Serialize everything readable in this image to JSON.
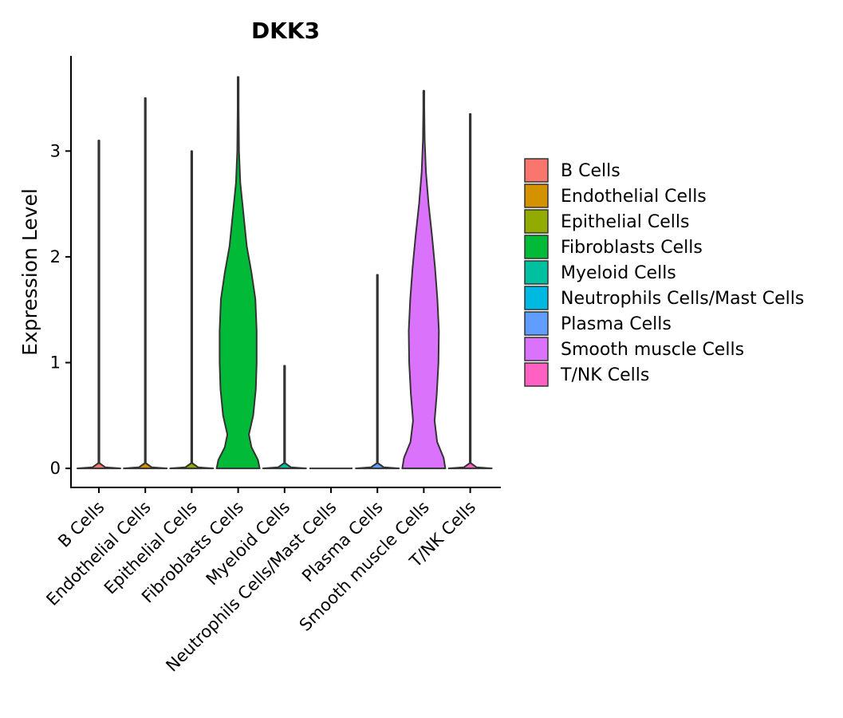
{
  "chart_data": {
    "type": "violin",
    "title": "DKK3",
    "xlabel": "",
    "ylabel": "Expression Level",
    "ylim": [
      -0.18,
      3.9
    ],
    "yticks": [
      "0",
      "1",
      "2",
      "3"
    ],
    "categories": [
      "B Cells",
      "Endothelial Cells",
      "Epithelial Cells",
      "Fibroblasts Cells",
      "Myeloid Cells",
      "Neutrophils Cells/Mast Cells",
      "Plasma Cells",
      "Smooth muscle Cells",
      "T/NK Cells"
    ],
    "colors": [
      "#F8766D",
      "#D39200",
      "#93AA00",
      "#00BA38",
      "#00C19F",
      "#00B9E3",
      "#619CFF",
      "#DB72FB",
      "#FF61C3"
    ],
    "max_values": [
      3.1,
      3.5,
      3.0,
      3.7,
      0.97,
      0.0,
      1.83,
      3.57,
      3.35
    ],
    "distributions": [
      {
        "name": "B Cells",
        "density": [
          [
            0,
            1
          ],
          [
            0.01,
            0.3
          ],
          [
            0.05,
            0.02
          ],
          [
            3.1,
            0.01
          ]
        ]
      },
      {
        "name": "Endothelial Cells",
        "density": [
          [
            0,
            1
          ],
          [
            0.01,
            0.3
          ],
          [
            0.05,
            0.02
          ],
          [
            3.5,
            0.01
          ]
        ]
      },
      {
        "name": "Epithelial Cells",
        "density": [
          [
            0,
            1
          ],
          [
            0.01,
            0.3
          ],
          [
            0.05,
            0.02
          ],
          [
            3.0,
            0.01
          ]
        ]
      },
      {
        "name": "Fibroblasts Cells",
        "density": [
          [
            0,
            1.0
          ],
          [
            0.08,
            0.92
          ],
          [
            0.2,
            0.62
          ],
          [
            0.32,
            0.5
          ],
          [
            0.5,
            0.7
          ],
          [
            0.75,
            0.82
          ],
          [
            1.0,
            0.86
          ],
          [
            1.3,
            0.86
          ],
          [
            1.6,
            0.8
          ],
          [
            1.85,
            0.62
          ],
          [
            2.1,
            0.4
          ],
          [
            2.4,
            0.25
          ],
          [
            2.7,
            0.1
          ],
          [
            3.0,
            0.04
          ],
          [
            3.4,
            0.02
          ],
          [
            3.7,
            0.01
          ]
        ]
      },
      {
        "name": "Myeloid Cells",
        "density": [
          [
            0,
            1
          ],
          [
            0.01,
            0.3
          ],
          [
            0.05,
            0.02
          ],
          [
            0.97,
            0.01
          ]
        ]
      },
      {
        "name": "Neutrophils Cells/Mast Cells",
        "density": [
          [
            0,
            1
          ]
        ]
      },
      {
        "name": "Plasma Cells",
        "density": [
          [
            0,
            1
          ],
          [
            0.01,
            0.3
          ],
          [
            0.05,
            0.02
          ],
          [
            1.83,
            0.01
          ]
        ]
      },
      {
        "name": "Smooth muscle Cells",
        "density": [
          [
            0,
            1.0
          ],
          [
            0.1,
            0.92
          ],
          [
            0.25,
            0.62
          ],
          [
            0.45,
            0.5
          ],
          [
            0.7,
            0.6
          ],
          [
            1.0,
            0.68
          ],
          [
            1.3,
            0.7
          ],
          [
            1.6,
            0.63
          ],
          [
            1.9,
            0.52
          ],
          [
            2.2,
            0.38
          ],
          [
            2.5,
            0.22
          ],
          [
            2.8,
            0.1
          ],
          [
            3.1,
            0.04
          ],
          [
            3.4,
            0.02
          ],
          [
            3.57,
            0.01
          ]
        ]
      },
      {
        "name": "T/NK Cells",
        "density": [
          [
            0,
            1
          ],
          [
            0.01,
            0.3
          ],
          [
            0.05,
            0.02
          ],
          [
            3.35,
            0.01
          ]
        ]
      }
    ],
    "legend": {
      "position": "right",
      "entries": [
        "B Cells",
        "Endothelial Cells",
        "Epithelial Cells",
        "Fibroblasts Cells",
        "Myeloid Cells",
        "Neutrophils Cells/Mast Cells",
        "Plasma Cells",
        "Smooth muscle Cells",
        "T/NK Cells"
      ]
    },
    "grid": false
  }
}
